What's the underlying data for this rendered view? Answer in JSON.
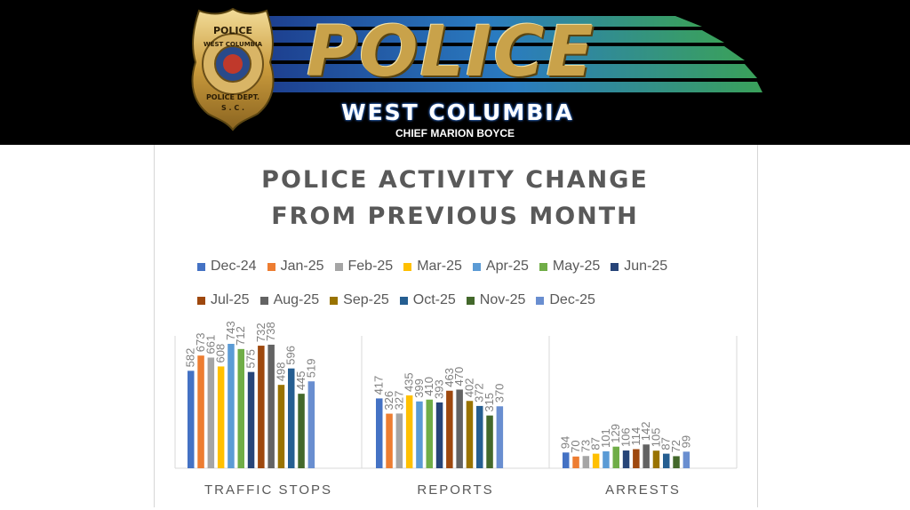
{
  "header": {
    "badge_top_text": "POLICE",
    "badge_ring_text": "WEST COLUMBIA",
    "badge_bottom_text": "POLICE DEPT.",
    "badge_state": "S . C .",
    "logo_word": "POLICE",
    "city": "WEST COLUMBIA",
    "chief": "CHIEF MARION BOYCE"
  },
  "chart_data": {
    "type": "bar",
    "title_lines": [
      "POLICE ACTIVITY CHANGE",
      "FROM PREVIOUS MONTH"
    ],
    "categories": [
      "TRAFFIC STOPS",
      "REPORTS",
      "ARRESTS"
    ],
    "series": [
      {
        "name": "Dec-24",
        "color": "#4472c4",
        "values": [
          582,
          417,
          94
        ]
      },
      {
        "name": "Jan-25",
        "color": "#ed7d31",
        "values": [
          673,
          326,
          70
        ]
      },
      {
        "name": "Feb-25",
        "color": "#a5a5a5",
        "values": [
          661,
          327,
          73
        ]
      },
      {
        "name": "Mar-25",
        "color": "#ffc000",
        "values": [
          608,
          435,
          87
        ]
      },
      {
        "name": "Apr-25",
        "color": "#5b9bd5",
        "values": [
          743,
          399,
          101
        ]
      },
      {
        "name": "May-25",
        "color": "#70ad47",
        "values": [
          712,
          410,
          129
        ]
      },
      {
        "name": "Jun-25",
        "color": "#264478",
        "values": [
          575,
          393,
          106
        ]
      },
      {
        "name": "Jul-25",
        "color": "#9e480e",
        "values": [
          732,
          463,
          114
        ]
      },
      {
        "name": "Aug-25",
        "color": "#636363",
        "values": [
          738,
          470,
          142
        ]
      },
      {
        "name": "Sep-25",
        "color": "#997300",
        "values": [
          498,
          402,
          105
        ]
      },
      {
        "name": "Oct-25",
        "color": "#255e91",
        "values": [
          596,
          372,
          87
        ]
      },
      {
        "name": "Nov-25",
        "color": "#43682b",
        "values": [
          445,
          315,
          72
        ]
      },
      {
        "name": "Dec-25",
        "color": "#698ed0",
        "values": [
          519,
          370,
          99
        ]
      }
    ],
    "ylim": [
      0,
      743
    ],
    "grid": false,
    "legend_position": "top"
  }
}
